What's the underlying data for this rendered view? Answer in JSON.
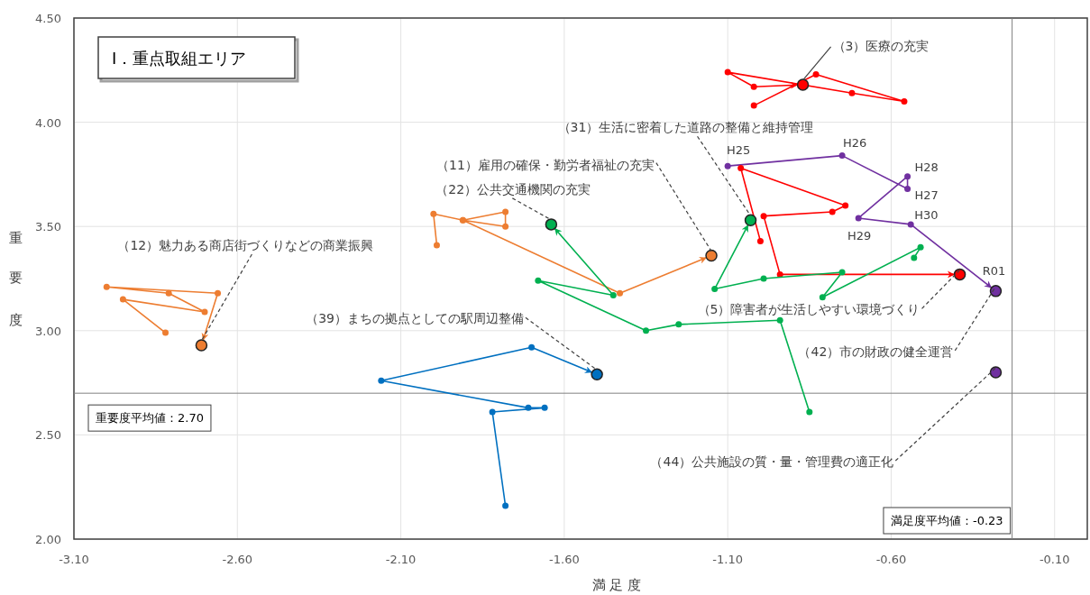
{
  "chart_data": {
    "type": "line",
    "title": "Ⅰ．重点取組エリア",
    "xlabel": "満 足 度",
    "ylabel": "重要度",
    "xlim": [
      -3.1,
      0.0
    ],
    "ylim": [
      2.0,
      4.5
    ],
    "xticks": [
      {
        "value": -3.1,
        "label": "-3.10"
      },
      {
        "value": -2.6,
        "label": "-2.60"
      },
      {
        "value": -2.1,
        "label": "-2.10"
      },
      {
        "value": -1.6,
        "label": "-1.60"
      },
      {
        "value": -1.1,
        "label": "-1.10"
      },
      {
        "value": -0.6,
        "label": "-0.60"
      },
      {
        "value": -0.1,
        "label": "-0.10"
      }
    ],
    "yticks": [
      {
        "value": 2.0,
        "label": "2.00"
      },
      {
        "value": 2.5,
        "label": "2.50"
      },
      {
        "value": 3.0,
        "label": "3.00"
      },
      {
        "value": 3.5,
        "label": "3.50"
      },
      {
        "value": 4.0,
        "label": "4.00"
      },
      {
        "value": 4.5,
        "label": "4.50"
      }
    ],
    "grid": true,
    "marker": "circle",
    "line_style": "solid",
    "series": [
      {
        "color": "#ff0000",
        "x": [
          -1.02,
          -0.83,
          -0.56,
          -0.72,
          -1.1,
          -1.02,
          -0.87
        ],
        "values": [
          4.08,
          4.23,
          4.1,
          4.14,
          4.24,
          4.17,
          4.18
        ]
      },
      {
        "color": "#7030a0",
        "x": [
          -1.1,
          -0.75,
          -0.55,
          -0.55,
          -0.7,
          -0.54,
          -0.28
        ],
        "values": [
          3.79,
          3.84,
          3.68,
          3.74,
          3.54,
          3.51,
          3.19
        ]
      },
      {
        "color": "#7030a0",
        "x": [
          -0.28
        ],
        "values": [
          2.8
        ]
      },
      {
        "color": "#ff0000",
        "x": [
          -1.0,
          -1.06,
          -0.74,
          -0.78,
          -0.99,
          -0.94,
          -0.39
        ],
        "values": [
          3.43,
          3.78,
          3.6,
          3.57,
          3.55,
          3.27,
          3.27
        ]
      },
      {
        "color": "#00b050",
        "x": [
          -0.53,
          -0.51,
          -0.81,
          -0.75,
          -0.99,
          -1.14,
          -1.03
        ],
        "values": [
          3.35,
          3.4,
          3.16,
          3.28,
          3.25,
          3.2,
          3.53
        ]
      },
      {
        "color": "#ed7d31",
        "x": [
          -1.99,
          -2.0,
          -1.91,
          -1.78,
          -1.78,
          -1.91,
          -1.43,
          -1.15
        ],
        "values": [
          3.41,
          3.56,
          3.53,
          3.57,
          3.5,
          3.53,
          3.18,
          3.36
        ]
      },
      {
        "color": "#00b050",
        "x": [
          -0.85,
          -0.94,
          -1.25,
          -1.35,
          -1.68,
          -1.45,
          -1.64
        ],
        "values": [
          2.61,
          3.05,
          3.03,
          3.0,
          3.24,
          3.17,
          3.51
        ]
      },
      {
        "color": "#ed7d31",
        "x": [
          -2.82,
          -2.95,
          -2.7,
          -2.81,
          -3.0,
          -2.66,
          -2.71
        ],
        "values": [
          2.99,
          3.15,
          3.09,
          3.18,
          3.21,
          3.18,
          2.93
        ]
      },
      {
        "color": "#0070c0",
        "x": [
          -1.78,
          -1.82,
          -1.66,
          -1.71,
          -2.16,
          -1.7,
          -1.5
        ],
        "values": [
          2.16,
          2.61,
          2.63,
          2.63,
          2.76,
          2.92,
          2.79
        ]
      }
    ],
    "ref_lines": [
      {
        "axis": "y",
        "value": 2.7,
        "label": "重要度平均値：2.70",
        "color": "#808080"
      },
      {
        "axis": "x",
        "value": -0.23,
        "label": "満足度平均値：-0.23",
        "color": "#808080"
      }
    ],
    "annotations": [
      {
        "text": "（3）医療の充実",
        "x": -0.87,
        "y": 4.18
      },
      {
        "text": "（31）生活に密着した道路の整備と維持管理",
        "x": -1.03,
        "y": 3.53
      },
      {
        "text": "（11）雇用の確保・勤労者福祉の充実",
        "x": -1.15,
        "y": 3.36
      },
      {
        "text": "（22）公共交通機関の充実",
        "x": -1.64,
        "y": 3.51
      },
      {
        "text": "（12）魅力ある商店街づくりなどの商業振興",
        "x": -2.71,
        "y": 2.93
      },
      {
        "text": "（39）まちの拠点としての駅周辺整備",
        "x": -1.5,
        "y": 2.79
      },
      {
        "text": "（5）障害者が生活しやすい環境づくり",
        "x": -0.39,
        "y": 3.27
      },
      {
        "text": "（42）市の財政の健全運営",
        "x": -0.28,
        "y": 3.19
      },
      {
        "text": "（44）公共施設の質・量・管理費の適正化",
        "x": -0.28,
        "y": 2.8
      },
      {
        "text": "H25",
        "x": -1.1,
        "y": 3.79
      },
      {
        "text": "H26",
        "x": -0.75,
        "y": 3.84
      },
      {
        "text": "H27",
        "x": -0.55,
        "y": 3.68
      },
      {
        "text": "H28",
        "x": -0.55,
        "y": 3.74
      },
      {
        "text": "H29",
        "x": -0.7,
        "y": 3.54
      },
      {
        "text": "H30",
        "x": -0.54,
        "y": 3.51
      },
      {
        "text": "R01",
        "x": -0.28,
        "y": 3.19
      }
    ]
  }
}
